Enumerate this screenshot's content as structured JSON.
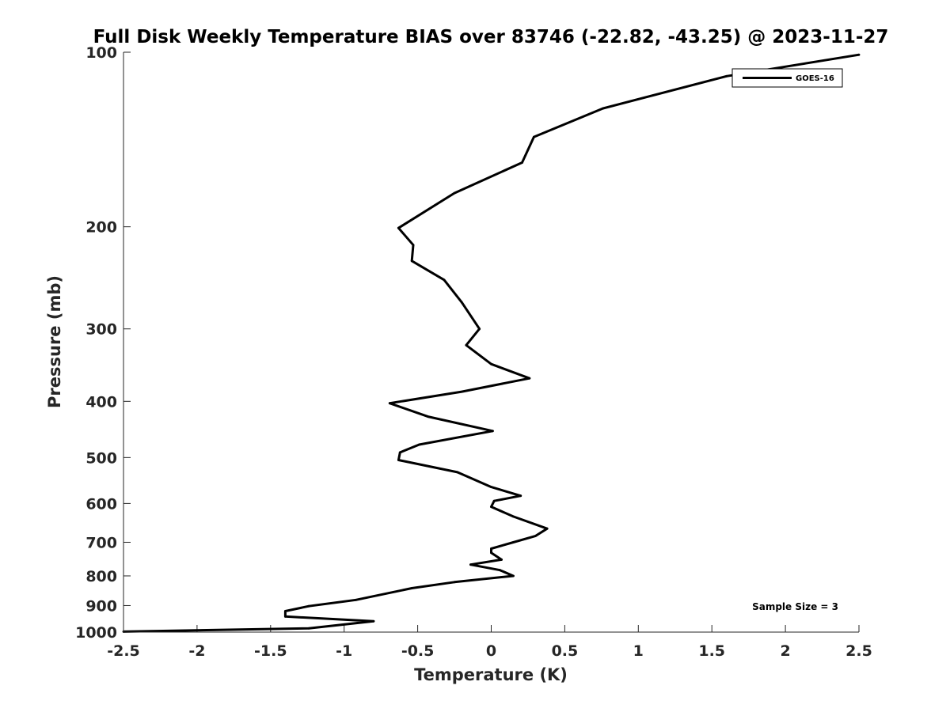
{
  "chart_data": {
    "type": "line",
    "title": "Full Disk Weekly Temperature BIAS over 83746 (-22.82, -43.25) @ 2023-11-27",
    "xlabel": "Temperature (K)",
    "ylabel": "Pressure (mb)",
    "xlim": [
      -2.5,
      2.5
    ],
    "ylim": [
      100,
      1000
    ],
    "y_scale": "log",
    "y_reversed": true,
    "x_ticks": [
      "-2.5",
      "-2",
      "-1.5",
      "-1",
      "-0.5",
      "0",
      "0.5",
      "1",
      "1.5",
      "2",
      "2.5"
    ],
    "y_ticks": [
      "100",
      "200",
      "300",
      "400",
      "500",
      "600",
      "700",
      "800",
      "900",
      "1000"
    ],
    "grid": false,
    "legend_position": "top-right",
    "series": [
      {
        "name": "GOES-16",
        "color": "#000000",
        "points": [
          [
            2.5,
            101
          ],
          [
            1.6,
            110
          ],
          [
            0.76,
            125
          ],
          [
            0.29,
            140
          ],
          [
            0.21,
            155
          ],
          [
            -0.25,
            175
          ],
          [
            -0.63,
            201
          ],
          [
            -0.53,
            215
          ],
          [
            -0.54,
            229
          ],
          [
            -0.32,
            247
          ],
          [
            -0.2,
            270
          ],
          [
            -0.08,
            300
          ],
          [
            -0.17,
            320
          ],
          [
            0.0,
            345
          ],
          [
            0.26,
            365
          ],
          [
            -0.2,
            385
          ],
          [
            -0.69,
            403
          ],
          [
            -0.43,
            425
          ],
          [
            0.01,
            450
          ],
          [
            -0.49,
            475
          ],
          [
            -0.62,
            490
          ],
          [
            -0.63,
            505
          ],
          [
            -0.23,
            530
          ],
          [
            0.0,
            562
          ],
          [
            0.2,
            582
          ],
          [
            0.02,
            594
          ],
          [
            0.0,
            608
          ],
          [
            0.15,
            632
          ],
          [
            0.38,
            663
          ],
          [
            0.3,
            683
          ],
          [
            0.15,
            700
          ],
          [
            0.0,
            718
          ],
          [
            0.0,
            730
          ],
          [
            0.07,
            750
          ],
          [
            -0.14,
            765
          ],
          [
            0.06,
            782
          ],
          [
            0.15,
            800
          ],
          [
            -0.25,
            820
          ],
          [
            -0.54,
            840
          ],
          [
            -0.92,
            880
          ],
          [
            -1.24,
            902
          ],
          [
            -1.4,
            920
          ],
          [
            -1.4,
            940
          ],
          [
            -0.8,
            958
          ],
          [
            -1.24,
            985
          ],
          [
            -2.5,
            998
          ]
        ]
      }
    ],
    "legend": [
      "GOES-16"
    ],
    "annotations": [
      "Sample Size = 3"
    ]
  }
}
